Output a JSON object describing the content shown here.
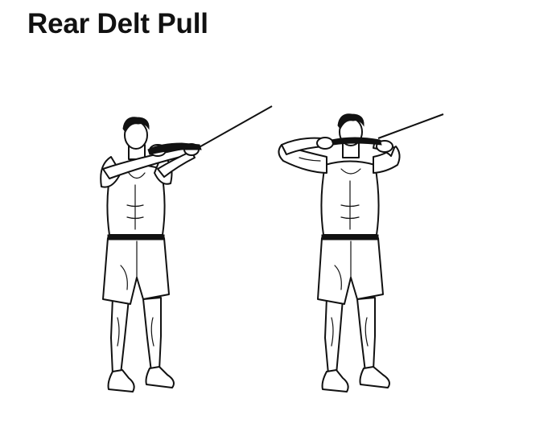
{
  "title": "Rear Delt Pull",
  "figures": [
    {
      "name": "start-position"
    },
    {
      "name": "end-position"
    }
  ]
}
